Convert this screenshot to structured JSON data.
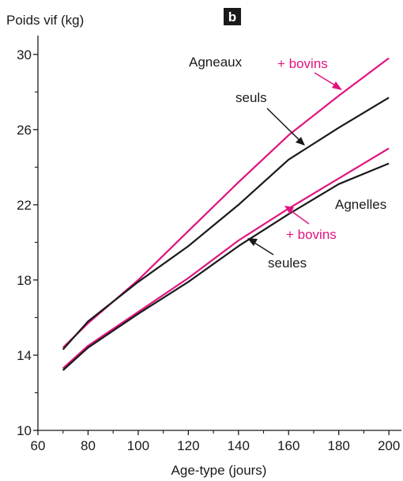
{
  "chart_data": {
    "type": "line",
    "panel_label": "b",
    "ylabel": "Poids vif (kg)",
    "xlabel": "Age-type (jours)",
    "xlim": [
      60,
      205
    ],
    "ylim": [
      10,
      31
    ],
    "x_ticks": [
      60,
      80,
      100,
      120,
      140,
      160,
      180,
      200
    ],
    "y_ticks": [
      10,
      14,
      18,
      22,
      26,
      30
    ],
    "grid": false,
    "series": [
      {
        "id": "agneaux-bovins",
        "color": "#e0147f",
        "x": [
          70,
          80,
          100,
          120,
          140,
          160,
          180,
          200
        ],
        "y": [
          14.4,
          15.7,
          18.0,
          20.6,
          23.2,
          25.7,
          27.8,
          29.8
        ]
      },
      {
        "id": "agneaux-seuls",
        "color": "#1a1a1a",
        "x": [
          70,
          80,
          100,
          120,
          140,
          160,
          180,
          200
        ],
        "y": [
          14.3,
          15.8,
          17.9,
          19.8,
          22.0,
          24.4,
          26.1,
          27.7
        ]
      },
      {
        "id": "agnelles-bovins",
        "color": "#e0147f",
        "x": [
          70,
          80,
          100,
          120,
          140,
          160,
          180,
          200
        ],
        "y": [
          13.3,
          14.5,
          16.3,
          18.1,
          20.1,
          21.8,
          23.4,
          25.0
        ]
      },
      {
        "id": "agnelles-seules",
        "color": "#1a1a1a",
        "x": [
          70,
          80,
          100,
          120,
          140,
          160,
          180,
          200
        ],
        "y": [
          13.2,
          14.4,
          16.2,
          17.9,
          19.8,
          21.5,
          23.1,
          24.2
        ]
      }
    ],
    "annotations": {
      "agneaux": "Agneaux",
      "bovins_top": "+ bovins",
      "seuls": "seuls",
      "agnelles": "Agnelles",
      "bovins_bottom": "+ bovins",
      "seules": "seules"
    }
  }
}
